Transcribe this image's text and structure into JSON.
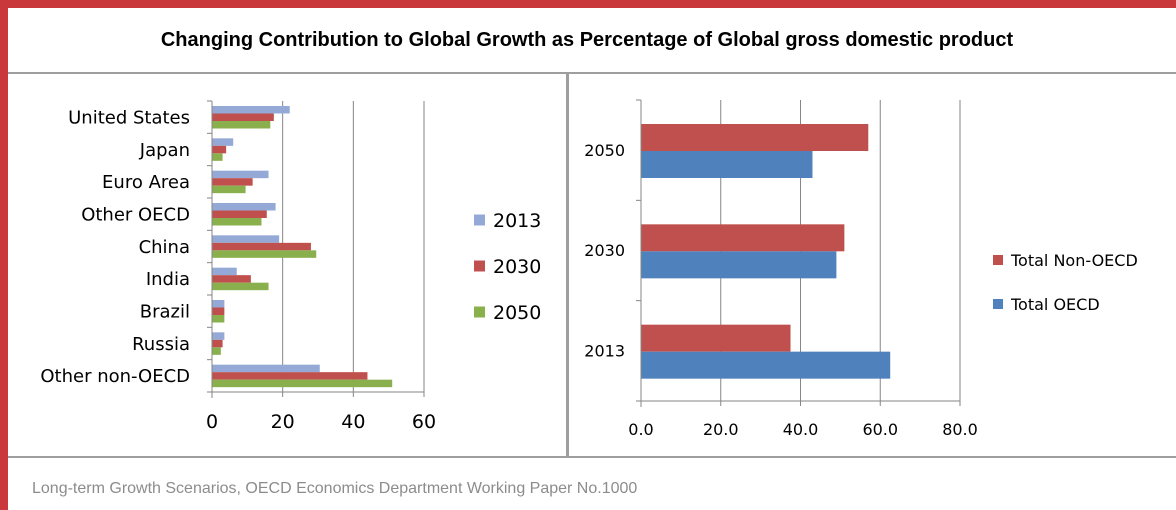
{
  "title": "Changing Contribution to Global Growth as Percentage of Global gross domestic product",
  "source": "Long-term Growth Scenarios, OECD Economics Department Working Paper No.1000",
  "chart_data": [
    {
      "type": "bar",
      "orientation": "horizontal",
      "categories": [
        "United States",
        "Japan",
        "Euro Area",
        "Other OECD",
        "China",
        "India",
        "Brazil",
        "Russia",
        "Other non-OECD"
      ],
      "series": [
        {
          "name": "2013",
          "color": "#94a9d6",
          "values": [
            22,
            6,
            16,
            18,
            19,
            7,
            3.5,
            3.5,
            30.5
          ]
        },
        {
          "name": "2030",
          "color": "#c0504d",
          "values": [
            17.5,
            4,
            11.5,
            15.5,
            28,
            11,
            3.5,
            3,
            44
          ]
        },
        {
          "name": "2050",
          "color": "#8ab04e",
          "values": [
            16.5,
            3,
            9.5,
            14,
            29.5,
            16,
            3.5,
            2.5,
            51
          ]
        }
      ],
      "xlim": [
        0,
        60
      ],
      "xticks": [
        "0",
        "20",
        "40",
        "60"
      ],
      "grid": "vertical",
      "legend": "right"
    },
    {
      "type": "bar",
      "orientation": "horizontal",
      "categories": [
        "2050",
        "2030",
        "2013"
      ],
      "series": [
        {
          "name": "Total Non-OECD",
          "color": "#c0504d",
          "values": [
            57,
            51,
            37.5
          ]
        },
        {
          "name": "Total OECD",
          "color": "#4f81bd",
          "values": [
            43,
            49,
            62.5
          ]
        }
      ],
      "xlim": [
        0,
        80
      ],
      "xticks": [
        "0.0",
        "20.0",
        "40.0",
        "60.0",
        "80.0"
      ],
      "grid": "vertical",
      "legend": "right"
    }
  ]
}
